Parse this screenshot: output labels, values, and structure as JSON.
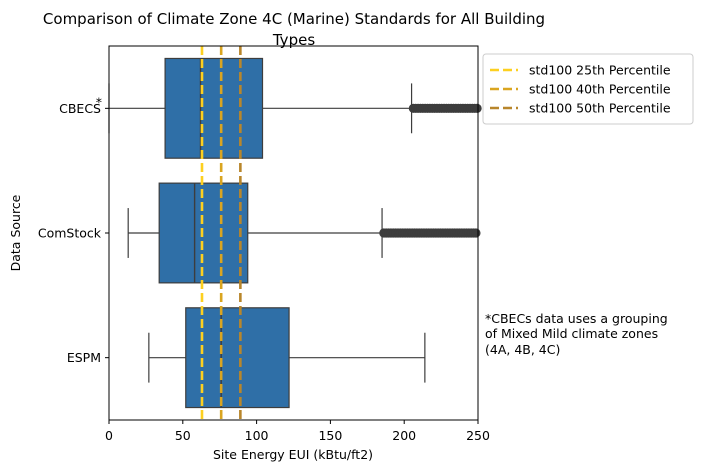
{
  "chart_data": {
    "type": "box",
    "orientation": "horizontal",
    "title": "Comparison of Climate Zone 4C (Marine) Standards for All Building Types",
    "title_lines": [
      "Comparison of Climate Zone 4C (Marine) Standards for All Building",
      "Types"
    ],
    "xlabel": "Site Energy EUI (kBtu/ft2)",
    "ylabel": "Data Source",
    "xlim": [
      0,
      250
    ],
    "xticks": [
      0,
      50,
      100,
      150,
      200,
      250
    ],
    "grid": false,
    "legend_position": "outside-right-top",
    "box_color": "#2f6fa7",
    "categories": [
      "CBECS",
      "ComStock",
      "ESPM"
    ],
    "category_markers": [
      "*",
      "",
      ""
    ],
    "boxes": [
      {
        "name": "CBECS",
        "whisker_low": 0,
        "q1": 38,
        "median": 62,
        "q3": 104,
        "whisker_high": 205,
        "outliers_from": 205,
        "outliers_to": 250
      },
      {
        "name": "ComStock",
        "whisker_low": 13,
        "q1": 34,
        "median": 58,
        "q3": 94,
        "whisker_high": 185,
        "outliers_from": 185,
        "outliers_to": 250
      },
      {
        "name": "ESPM",
        "whisker_low": 27,
        "q1": 52,
        "median": 76,
        "q3": 122,
        "whisker_high": 214
      }
    ],
    "reference_lines": [
      {
        "name": "std100 25th Percentile",
        "value": 63,
        "color": "#fdd020"
      },
      {
        "name": "std100 40th Percentile",
        "value": 76,
        "color": "#daa520"
      },
      {
        "name": "std100 50th Percentile",
        "value": 89,
        "color": "#b8862b"
      }
    ],
    "annotation": "*CBECs data uses a grouping of Mixed Mild climate zones (4A, 4B, 4C)",
    "annotation_lines": [
      "*CBECs data uses a grouping",
      "of Mixed Mild climate zones",
      "(4A, 4B, 4C)"
    ]
  }
}
